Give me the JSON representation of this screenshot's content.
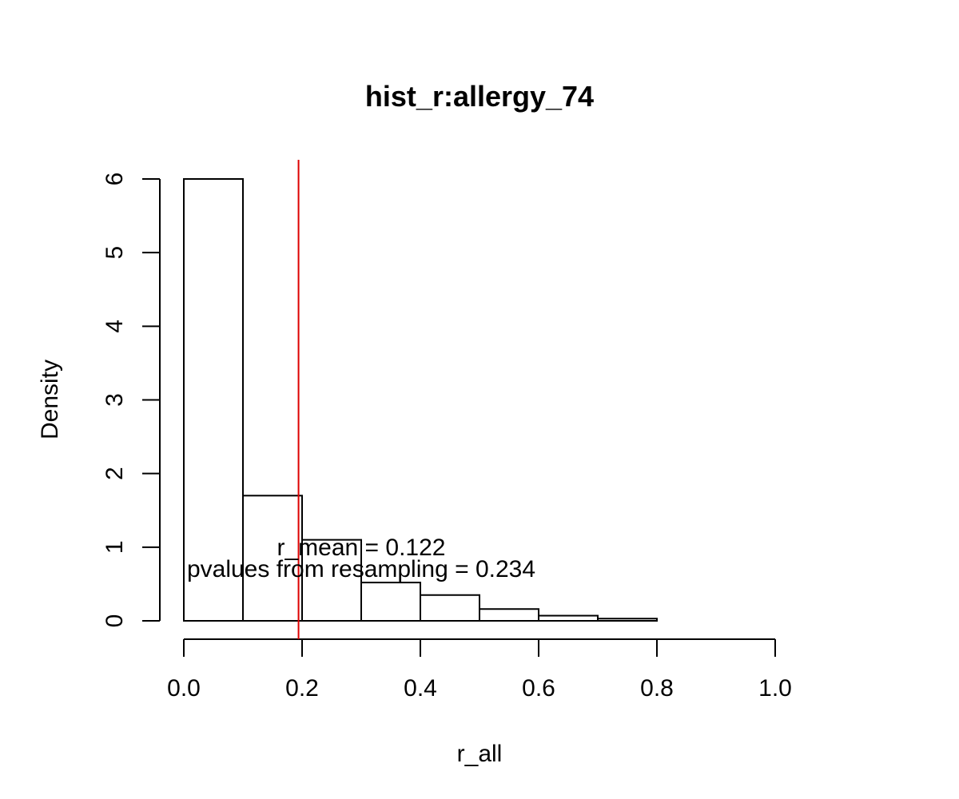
{
  "chart_data": {
    "type": "bar",
    "title": "hist_r:allergy_74",
    "xlabel": "r_all",
    "ylabel": "Density",
    "bins": [
      {
        "x0": 0.0,
        "x1": 0.1,
        "density": 6.0
      },
      {
        "x0": 0.1,
        "x1": 0.2,
        "density": 1.7
      },
      {
        "x0": 0.2,
        "x1": 0.3,
        "density": 1.1
      },
      {
        "x0": 0.3,
        "x1": 0.4,
        "density": 0.52
      },
      {
        "x0": 0.4,
        "x1": 0.5,
        "density": 0.35
      },
      {
        "x0": 0.5,
        "x1": 0.6,
        "density": 0.16
      },
      {
        "x0": 0.6,
        "x1": 0.7,
        "density": 0.07
      },
      {
        "x0": 0.7,
        "x1": 0.8,
        "density": 0.03
      }
    ],
    "xlim": [
      0.0,
      1.0
    ],
    "ylim": [
      0,
      6
    ],
    "x_ticks": [
      "0.0",
      "0.2",
      "0.4",
      "0.6",
      "0.8",
      "1.0"
    ],
    "y_ticks": [
      "0",
      "1",
      "2",
      "3",
      "4",
      "5",
      "6"
    ],
    "vline": {
      "x": 0.194,
      "color": "#dd0000"
    },
    "annotations": {
      "r_mean": "r_mean = 0.122",
      "pvalue": "pvalues from resampling = 0.234"
    },
    "grid": false,
    "legend": "none"
  }
}
